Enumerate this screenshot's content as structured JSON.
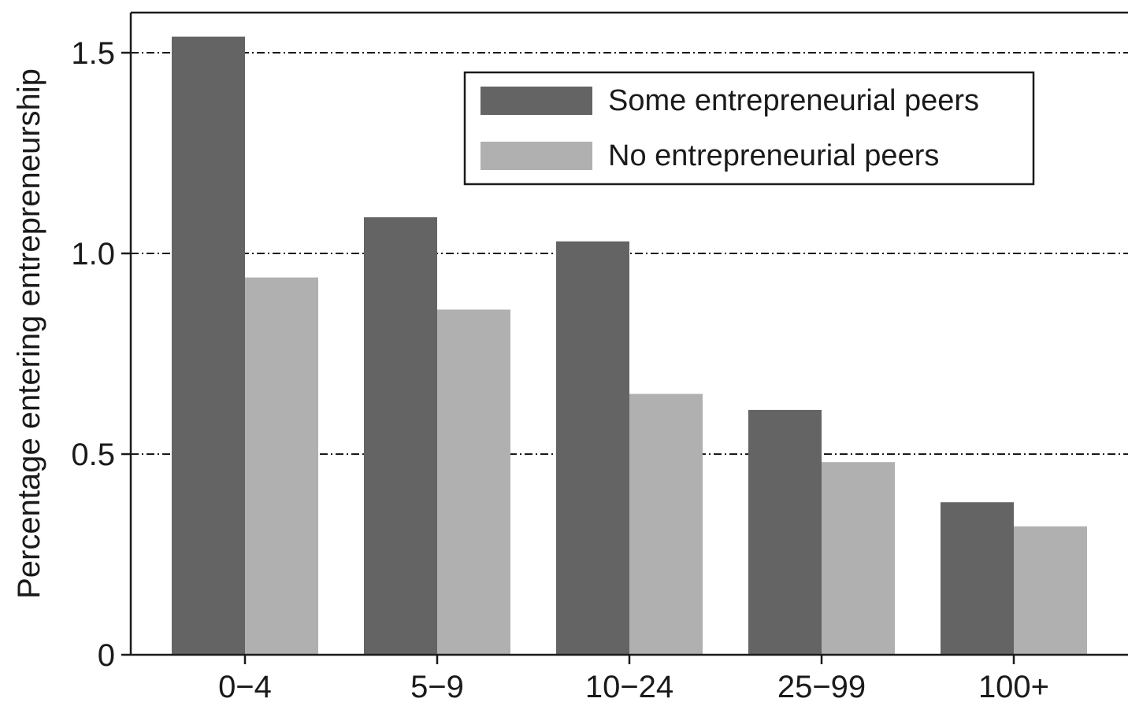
{
  "chart_data": {
    "type": "bar",
    "title": "",
    "xlabel": "",
    "ylabel": "Percentage entering entrepreneurship",
    "ylim": [
      0,
      1.6
    ],
    "yticks": [
      0,
      0.5,
      1.0,
      1.5
    ],
    "ytick_labels": [
      "0",
      "0.5",
      "1.0",
      "1.5"
    ],
    "grid": "horizontal dashed at 0.5, 1.0, 1.5",
    "legend_position": "top-right",
    "categories": [
      "0−4",
      "5−9",
      "10−24",
      "25−99",
      "100+"
    ],
    "series": [
      {
        "name": "Some entrepreneurial peers",
        "color": "#646464",
        "values": [
          1.54,
          1.09,
          1.03,
          0.61,
          0.38
        ]
      },
      {
        "name": "No entrepreneurial peers",
        "color": "#b0b0b0",
        "values": [
          0.94,
          0.86,
          0.65,
          0.48,
          0.32
        ]
      }
    ]
  }
}
